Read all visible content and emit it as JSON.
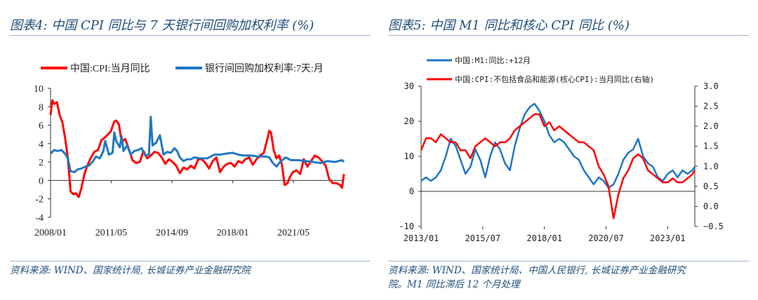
{
  "left": {
    "title": "图表4: 中国 CPI 同比与 7 天银行间回购加权利率 (%)",
    "source": "资料来源: WIND、国家统计局, 长城证券产业金融研究院"
  },
  "right": {
    "title": "图表5: 中国 M1 同比和核心 CPI 同比 (%)",
    "source_line1": "资料来源: WIND、国家统计局、中国人民银行, 长城证券产业金融研究",
    "source_line2": "院。M1 同比滞后 12 个月处理"
  },
  "colors": {
    "red": "#ff0000",
    "blue": "#1f77c4",
    "title": "#1f4e79"
  },
  "chart_data": [
    {
      "type": "line",
      "title": "",
      "xlabel": "",
      "ylabel": "",
      "ylim": [
        -4,
        10
      ],
      "yticks": [
        -4,
        -2,
        0,
        2,
        4,
        6,
        8,
        10
      ],
      "xticks": [
        "2008/01",
        "2011/05",
        "2014/09",
        "2018/01",
        "2021/05"
      ],
      "xrange": [
        2008.0,
        2024.1
      ],
      "legend_position": "top",
      "series": [
        {
          "name": "中国:CPI:当月同比",
          "color": "#ff0000",
          "x": [
            2008.0,
            2008.1,
            2008.2,
            2008.35,
            2008.5,
            2008.65,
            2008.8,
            2008.95,
            2009.1,
            2009.25,
            2009.4,
            2009.55,
            2009.7,
            2009.85,
            2010.0,
            2010.2,
            2010.4,
            2010.6,
            2010.8,
            2010.95,
            2011.1,
            2011.3,
            2011.5,
            2011.6,
            2011.75,
            2011.9,
            2012.1,
            2012.3,
            2012.5,
            2012.7,
            2012.9,
            2013.1,
            2013.3,
            2013.5,
            2013.7,
            2013.9,
            2014.1,
            2014.3,
            2014.5,
            2014.7,
            2014.9,
            2015.1,
            2015.3,
            2015.5,
            2015.7,
            2015.9,
            2016.1,
            2016.3,
            2016.5,
            2016.7,
            2016.9,
            2017.1,
            2017.3,
            2017.5,
            2017.7,
            2017.9,
            2018.1,
            2018.3,
            2018.5,
            2018.7,
            2018.9,
            2019.1,
            2019.3,
            2019.5,
            2019.7,
            2019.9,
            2020.0,
            2020.1,
            2020.25,
            2020.4,
            2020.55,
            2020.7,
            2020.85,
            2021.0,
            2021.15,
            2021.3,
            2021.5,
            2021.7,
            2021.9,
            2022.1,
            2022.3,
            2022.5,
            2022.7,
            2022.9,
            2023.1,
            2023.3,
            2023.5,
            2023.7,
            2023.9,
            2024.0,
            2024.1
          ],
          "y": [
            7.1,
            8.7,
            8.3,
            8.5,
            7.1,
            6.3,
            4.6,
            2.4,
            -1.2,
            -1.5,
            -1.4,
            -1.8,
            -0.8,
            0.6,
            1.5,
            2.4,
            3.1,
            3.3,
            4.4,
            4.6,
            4.9,
            5.3,
            6.4,
            6.5,
            6.1,
            4.2,
            4.5,
            3.4,
            2.2,
            1.9,
            2.0,
            3.2,
            2.4,
            2.7,
            3.1,
            3.0,
            2.5,
            1.8,
            2.3,
            2.0,
            1.6,
            0.8,
            1.4,
            1.2,
            1.6,
            1.3,
            2.3,
            2.3,
            1.9,
            1.3,
            2.1,
            2.5,
            0.9,
            1.5,
            1.8,
            1.9,
            1.5,
            2.1,
            1.9,
            2.3,
            2.5,
            1.7,
            2.3,
            2.7,
            3.0,
            4.5,
            5.4,
            5.2,
            3.3,
            2.4,
            2.7,
            1.7,
            -0.5,
            -0.3,
            0.4,
            0.9,
            1.1,
            0.7,
            2.3,
            1.5,
            2.1,
            2.7,
            2.5,
            2.1,
            1.6,
            0.1,
            -0.3,
            -0.3,
            -0.5,
            -0.8,
            0.7
          ]
        },
        {
          "name": "银行间回购加权利率:7天:月",
          "color": "#1f77c4",
          "x": [
            2008.0,
            2008.2,
            2008.4,
            2008.6,
            2008.8,
            2008.95,
            2009.1,
            2009.3,
            2009.5,
            2009.7,
            2009.9,
            2010.1,
            2010.3,
            2010.5,
            2010.7,
            2010.9,
            2011.0,
            2011.2,
            2011.4,
            2011.5,
            2011.6,
            2011.8,
            2011.9,
            2012.0,
            2012.2,
            2012.4,
            2012.6,
            2012.8,
            2013.0,
            2013.2,
            2013.4,
            2013.5,
            2013.6,
            2013.8,
            2014.0,
            2014.2,
            2014.4,
            2014.6,
            2014.8,
            2014.95,
            2015.1,
            2015.3,
            2015.5,
            2015.7,
            2015.9,
            2016.2,
            2016.6,
            2017.0,
            2017.3,
            2017.6,
            2018.0,
            2018.3,
            2018.6,
            2019.0,
            2019.4,
            2019.8,
            2020.0,
            2020.2,
            2020.4,
            2020.6,
            2020.9,
            2021.2,
            2021.6,
            2022.0,
            2022.4,
            2022.8,
            2023.2,
            2023.6,
            2024.0,
            2024.1
          ],
          "y": [
            2.9,
            3.3,
            3.2,
            3.3,
            2.9,
            2.4,
            1.0,
            0.9,
            1.2,
            1.3,
            1.5,
            1.6,
            2.0,
            2.6,
            2.4,
            3.2,
            4.3,
            2.8,
            3.0,
            5.2,
            4.3,
            3.6,
            4.8,
            3.2,
            3.8,
            2.8,
            3.2,
            3.3,
            3.5,
            2.7,
            2.8,
            6.9,
            3.8,
            4.1,
            4.9,
            2.8,
            3.1,
            3.0,
            3.5,
            3.2,
            2.5,
            2.1,
            2.3,
            2.3,
            2.5,
            2.4,
            2.4,
            2.8,
            2.8,
            2.9,
            3.0,
            2.8,
            2.7,
            2.7,
            2.6,
            2.6,
            2.5,
            1.9,
            1.5,
            2.0,
            2.5,
            2.2,
            2.2,
            2.1,
            2.0,
            1.9,
            2.1,
            2.0,
            2.2,
            2.0
          ]
        }
      ]
    },
    {
      "type": "line",
      "title": "",
      "xlabel": "",
      "ylabel": "",
      "ylim": [
        -10,
        30
      ],
      "yticks": [
        -10,
        0,
        10,
        20,
        30
      ],
      "y2lim": [
        -0.5,
        3.0
      ],
      "y2ticks": [
        "−0.5",
        "0.0",
        "0.5",
        "1.0",
        "1.5",
        "2.0",
        "2.5",
        "3.0"
      ],
      "xticks": [
        "2013/01",
        "2015/07",
        "2018/01",
        "2020/07",
        "2023/01"
      ],
      "xrange": [
        2013.0,
        2024.1
      ],
      "legend_position": "top-left",
      "series": [
        {
          "name": "中国:M1:同比:+12月",
          "color": "#1f77c4",
          "axis": "left",
          "x": [
            2013.0,
            2013.2,
            2013.4,
            2013.6,
            2013.8,
            2014.0,
            2014.2,
            2014.4,
            2014.6,
            2014.8,
            2015.0,
            2015.2,
            2015.4,
            2015.6,
            2015.8,
            2016.0,
            2016.2,
            2016.4,
            2016.6,
            2016.8,
            2017.0,
            2017.2,
            2017.4,
            2017.6,
            2017.8,
            2018.0,
            2018.2,
            2018.4,
            2018.6,
            2018.8,
            2019.0,
            2019.2,
            2019.4,
            2019.6,
            2019.8,
            2020.0,
            2020.2,
            2020.4,
            2020.6,
            2020.8,
            2021.0,
            2021.2,
            2021.4,
            2021.6,
            2021.8,
            2022.0,
            2022.2,
            2022.4,
            2022.6,
            2022.8,
            2023.0,
            2023.2,
            2023.4,
            2023.6,
            2023.8,
            2024.0,
            2024.1
          ],
          "y": [
            3,
            4,
            3,
            4,
            6,
            10,
            15,
            13,
            9,
            5,
            7,
            12,
            9,
            4,
            10,
            14,
            12,
            8,
            6,
            13,
            18,
            22,
            24,
            25,
            23,
            20,
            16,
            14,
            15,
            14,
            12,
            10,
            9,
            6,
            4,
            2,
            4,
            3,
            1,
            2,
            5,
            9,
            11,
            12,
            15,
            10,
            8,
            7,
            4,
            3,
            5,
            6,
            4,
            6,
            5,
            6,
            7
          ]
        },
        {
          "name": "中国:CPI:不包括食品和能源(核心CPI):当月同比(右轴)",
          "color": "#ff0000",
          "axis": "right",
          "x": [
            2013.0,
            2013.2,
            2013.4,
            2013.6,
            2013.8,
            2014.0,
            2014.2,
            2014.4,
            2014.6,
            2014.8,
            2015.0,
            2015.2,
            2015.4,
            2015.6,
            2015.8,
            2016.0,
            2016.2,
            2016.4,
            2016.6,
            2016.8,
            2017.0,
            2017.2,
            2017.4,
            2017.6,
            2017.8,
            2018.0,
            2018.2,
            2018.4,
            2018.6,
            2018.8,
            2019.0,
            2019.2,
            2019.4,
            2019.6,
            2019.8,
            2020.0,
            2020.2,
            2020.4,
            2020.6,
            2020.8,
            2021.0,
            2021.2,
            2021.4,
            2021.6,
            2021.8,
            2022.0,
            2022.2,
            2022.4,
            2022.6,
            2022.8,
            2023.0,
            2023.2,
            2023.4,
            2023.6,
            2023.8,
            2024.0,
            2024.1
          ],
          "y": [
            1.4,
            1.7,
            1.7,
            1.6,
            1.8,
            1.7,
            1.6,
            1.6,
            1.4,
            1.4,
            1.2,
            1.5,
            1.6,
            1.7,
            1.6,
            1.5,
            1.6,
            1.6,
            1.7,
            1.9,
            2.0,
            2.1,
            2.2,
            2.3,
            2.3,
            2.0,
            2.1,
            1.9,
            2.0,
            1.9,
            1.8,
            1.7,
            1.6,
            1.6,
            1.5,
            1.4,
            1.0,
            0.8,
            0.5,
            -0.3,
            0.3,
            0.7,
            0.9,
            1.2,
            1.3,
            1.2,
            0.9,
            0.8,
            0.7,
            0.6,
            0.6,
            0.7,
            0.6,
            0.6,
            0.7,
            0.8,
            0.9
          ]
        }
      ]
    }
  ]
}
